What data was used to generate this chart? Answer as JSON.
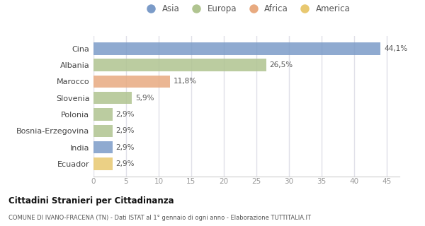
{
  "categories": [
    "Cina",
    "Albania",
    "Marocco",
    "Slovenia",
    "Polonia",
    "Bosnia-Erzegovina",
    "India",
    "Ecuador"
  ],
  "values": [
    44.1,
    26.5,
    11.8,
    5.9,
    2.9,
    2.9,
    2.9,
    2.9
  ],
  "labels": [
    "44,1%",
    "26,5%",
    "11,8%",
    "5,9%",
    "2,9%",
    "2,9%",
    "2,9%",
    "2,9%"
  ],
  "colors": [
    "#7b9bc8",
    "#b0c490",
    "#e8aa80",
    "#b0c490",
    "#b0c490",
    "#b0c490",
    "#7b9bc8",
    "#e8c870"
  ],
  "legend": [
    {
      "label": "Asia",
      "color": "#7b9bc8"
    },
    {
      "label": "Europa",
      "color": "#b0c490"
    },
    {
      "label": "Africa",
      "color": "#e8aa80"
    },
    {
      "label": "America",
      "color": "#e8c870"
    }
  ],
  "xlim": [
    0,
    47
  ],
  "xticks": [
    0,
    5,
    10,
    15,
    20,
    25,
    30,
    35,
    40,
    45
  ],
  "title": "Cittadini Stranieri per Cittadinanza",
  "subtitle": "COMUNE DI IVANO-FRACENA (TN) - Dati ISTAT al 1° gennaio di ogni anno - Elaborazione TUTTITALIA.IT",
  "bg_color": "#ffffff",
  "grid_color": "#e0e0e8",
  "bar_height": 0.75
}
